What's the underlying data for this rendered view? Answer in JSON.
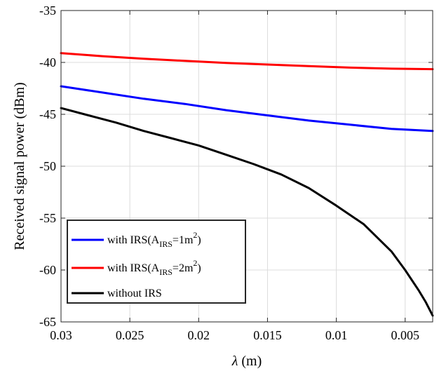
{
  "chart_data": {
    "type": "line",
    "title": "",
    "xlabel_symbol": "λ",
    "xlabel_unit": " (m)",
    "ylabel": "Received signal power (dBm)",
    "xlim": [
      0.03,
      0.003
    ],
    "ylim": [
      -65,
      -35
    ],
    "x_reversed": true,
    "grid": true,
    "legend_position": "lower-left",
    "x_ticks": [
      0.03,
      0.025,
      0.02,
      0.015,
      0.01,
      0.005
    ],
    "x_tick_labels": [
      "0.03",
      "0.025",
      "0.02",
      "0.015",
      "0.01",
      "0.005"
    ],
    "y_ticks": [
      -35,
      -40,
      -45,
      -50,
      -55,
      -60,
      -65
    ],
    "y_tick_labels": [
      "-35",
      "-40",
      "-45",
      "-50",
      "-55",
      "-60",
      "-65"
    ],
    "series": [
      {
        "name": "with IRS(A_IRS=1m^2)",
        "legend": {
          "prefix": "with IRS(A",
          "sub": "IRS",
          "mid": "=1m",
          "sup": "2",
          "suffix": ")"
        },
        "color": "#0000ff",
        "x": [
          0.03,
          0.027,
          0.024,
          0.021,
          0.018,
          0.015,
          0.012,
          0.009,
          0.006,
          0.003
        ],
        "y": [
          -42.3,
          -42.9,
          -43.5,
          -44.0,
          -44.6,
          -45.1,
          -45.6,
          -46.0,
          -46.4,
          -46.6
        ]
      },
      {
        "name": "with IRS(A_IRS=2m^2)",
        "legend": {
          "prefix": "with IRS(A",
          "sub": "IRS",
          "mid": "=2m",
          "sup": "2",
          "suffix": ")"
        },
        "color": "#ff0000",
        "x": [
          0.03,
          0.027,
          0.024,
          0.021,
          0.018,
          0.015,
          0.012,
          0.009,
          0.006,
          0.003
        ],
        "y": [
          -39.1,
          -39.4,
          -39.65,
          -39.85,
          -40.05,
          -40.2,
          -40.35,
          -40.5,
          -40.6,
          -40.65
        ]
      },
      {
        "name": "without IRS",
        "legend": {
          "prefix": "without IRS",
          "sub": "",
          "mid": "",
          "sup": "",
          "suffix": ""
        },
        "color": "#000000",
        "x": [
          0.03,
          0.028,
          0.026,
          0.024,
          0.022,
          0.02,
          0.018,
          0.016,
          0.014,
          0.012,
          0.01,
          0.008,
          0.006,
          0.005,
          0.004,
          0.0035,
          0.003
        ],
        "y": [
          -44.4,
          -45.1,
          -45.8,
          -46.6,
          -47.3,
          -48.0,
          -48.9,
          -49.8,
          -50.8,
          -52.1,
          -53.8,
          -55.6,
          -58.2,
          -60.0,
          -62.0,
          -63.1,
          -64.4
        ]
      }
    ]
  }
}
